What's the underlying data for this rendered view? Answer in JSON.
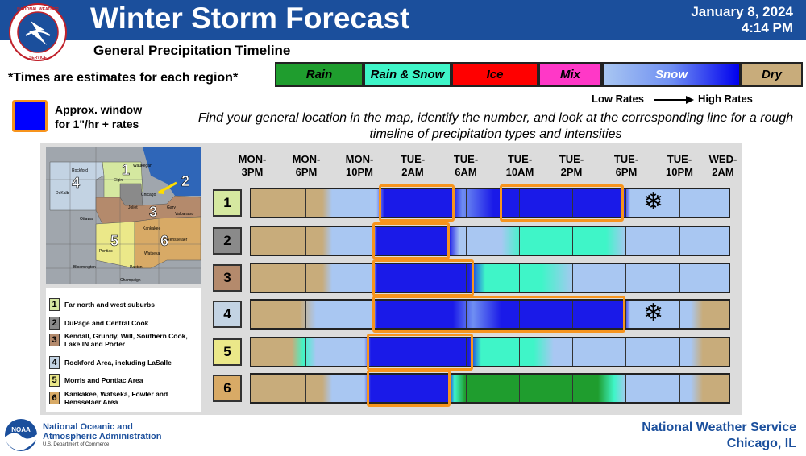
{
  "header": {
    "title": "Winter Storm Forecast",
    "subtitle": "General Precipitation Timeline",
    "date": "January 8, 2024",
    "time": "4:14 PM",
    "logo_text": "NATIONAL WEATHER SERVICE",
    "bg_color": "#1b4f9c"
  },
  "estimate_note": "*Times are estimates for each region*",
  "legend": [
    {
      "label": "Rain",
      "color": "#1f9d2e"
    },
    {
      "label": "Rain & Snow",
      "color": "#3ff5c8"
    },
    {
      "label": "Ice",
      "color": "#ff0000"
    },
    {
      "label": "Mix",
      "color": "#ff38c7"
    },
    {
      "label": "Snow",
      "color": "#0000ff"
    },
    {
      "label": "Dry",
      "color": "#c8ac7b"
    }
  ],
  "rates": {
    "low": "Low Rates",
    "high": "High Rates"
  },
  "window_key": {
    "line1": "Approx. window",
    "line2": "for 1\"/hr + rates"
  },
  "instructions": "Find your general location in the map, identify the number, and look at the corresponding line for a rough timeline of precipitation types and intensities",
  "times": [
    {
      "l1": "MON-",
      "l2": "3PM"
    },
    {
      "l1": "MON-",
      "l2": "6PM"
    },
    {
      "l1": "MON-",
      "l2": "10PM"
    },
    {
      "l1": "TUE-",
      "l2": "2AM"
    },
    {
      "l1": "TUE-",
      "l2": "6AM"
    },
    {
      "l1": "TUE-",
      "l2": "10AM"
    },
    {
      "l1": "TUE-",
      "l2": "2PM"
    },
    {
      "l1": "TUE-",
      "l2": "6PM"
    },
    {
      "l1": "TUE-",
      "l2": "10PM"
    },
    {
      "l1": "WED-",
      "l2": "2AM"
    }
  ],
  "map": {
    "labels": [
      "Rockford",
      "Waukegan",
      "DeKalb",
      "Elgin",
      "Chicago",
      "Ottawa",
      "Joliet",
      "Gary",
      "Valparaiso",
      "Kankakee",
      "Rensselaer",
      "Watseka",
      "Pontiac",
      "Paxton",
      "Bloomington",
      "Champaign"
    ]
  },
  "regions": [
    {
      "num": "1",
      "name": "Far north and west suburbs",
      "color": "#d5e8a0"
    },
    {
      "num": "2",
      "name": "DuPage and Central Cook",
      "color": "#8a8a8a"
    },
    {
      "num": "3",
      "name": "Kendall, Grundy, Will, Southern Cook, Lake IN and Porter",
      "color": "#b48a6c"
    },
    {
      "num": "4",
      "name": "Rockford Area, including LaSalle",
      "color": "#c3d3e3"
    },
    {
      "num": "5",
      "name": "Morris and Pontiac Area",
      "color": "#ebe889"
    },
    {
      "num": "6",
      "name": "Kankakee, Watseka, Fowler and Rensselaer Area",
      "color": "#d8aa66"
    }
  ],
  "footer": {
    "noaa_line1": "National Oceanic and",
    "noaa_line2": "Atmospheric Administration",
    "noaa_dept": "U.S. Department of Commerce",
    "nws_line1": "National Weather Service",
    "nws_line2": "Chicago, IL",
    "noaa_logo_text": "NOAA"
  }
}
